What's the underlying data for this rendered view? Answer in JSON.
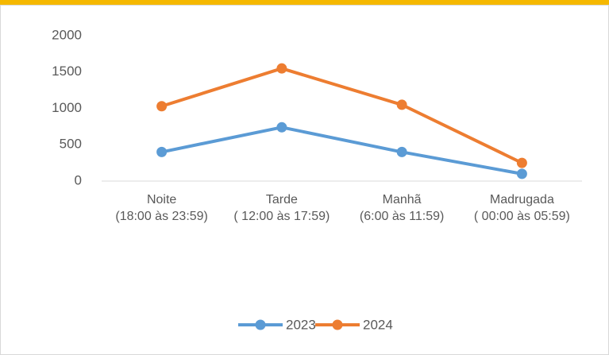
{
  "chart_data": {
    "type": "line",
    "categories": [
      "Noite\n(18:00 às 23:59)",
      "Tarde\n( 12:00 às 17:59)",
      "Manhã\n(6:00 às 11:59)",
      "Madrugada\n( 00:00 às 05:59)"
    ],
    "series": [
      {
        "name": "2023",
        "color": "#5b9bd5",
        "values": [
          400,
          740,
          400,
          100
        ]
      },
      {
        "name": "2024",
        "color": "#ed7d31",
        "values": [
          1030,
          1550,
          1050,
          250
        ]
      }
    ],
    "ylim": [
      0,
      2000
    ],
    "yticks": [
      0,
      500,
      1000,
      1500,
      2000
    ],
    "grid": false,
    "legend": "bottom"
  }
}
